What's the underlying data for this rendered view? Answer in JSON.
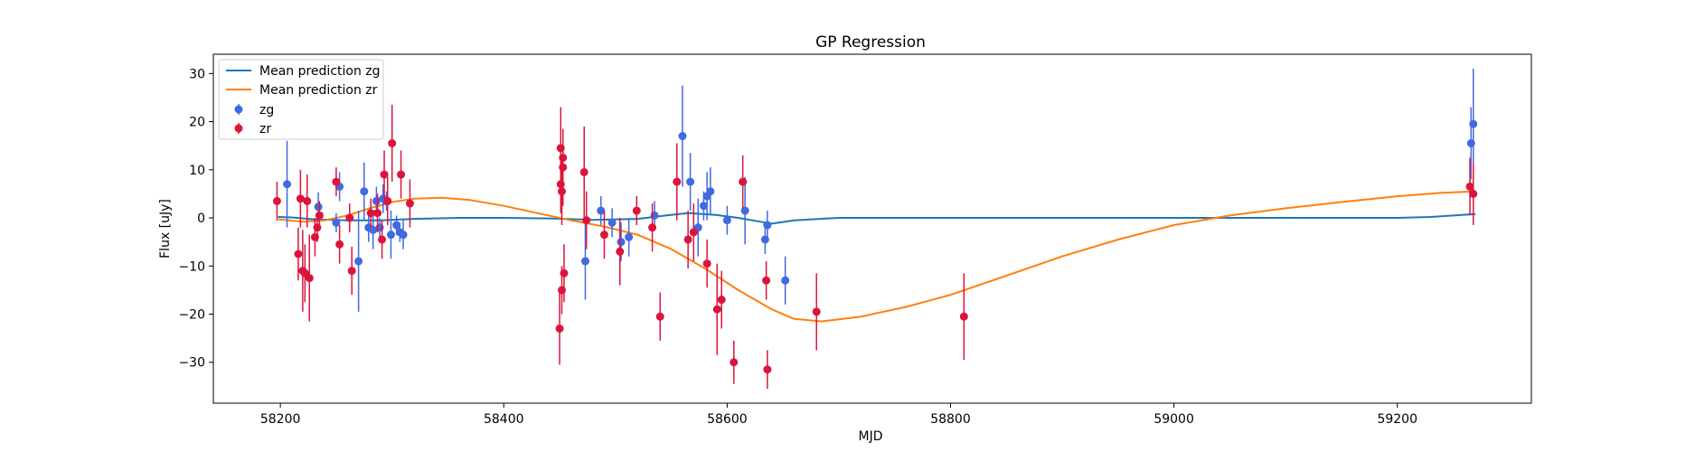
{
  "chart_data": {
    "type": "scatter",
    "title": "GP Regression",
    "xlabel": "MJD",
    "ylabel": "Flux [uJy]",
    "xlim": [
      58140,
      59320
    ],
    "ylim": [
      -38.5,
      34
    ],
    "xticks": [
      58200,
      58400,
      58600,
      58800,
      59000,
      59200
    ],
    "yticks": [
      -30,
      -20,
      -10,
      0,
      10,
      20,
      30
    ],
    "grid": false,
    "legend_placement": "upper-left",
    "colors": {
      "zg_line": "#1f77b4",
      "zr_line": "#ff7f0e",
      "zg_points": "#4169e1",
      "zr_points": "#dc143c"
    },
    "series": [
      {
        "name": "Mean prediction zg",
        "kind": "line",
        "x": [
          58198,
          58210,
          58230,
          58260,
          58290,
          58320,
          58360,
          58400,
          58440,
          58480,
          58520,
          58545,
          58565,
          58590,
          58610,
          58630,
          58640,
          58660,
          58700,
          58800,
          58900,
          59000,
          59100,
          59200,
          59230,
          59270
        ],
        "y": [
          0.2,
          0.1,
          -0.3,
          -0.5,
          -0.5,
          -0.2,
          0.0,
          0.0,
          -0.1,
          -0.4,
          -0.2,
          0.5,
          1.0,
          0.6,
          0.0,
          -0.8,
          -1.2,
          -0.5,
          0.0,
          0.0,
          0.0,
          0.0,
          0.0,
          0.0,
          0.2,
          0.8
        ]
      },
      {
        "name": "Mean prediction zr",
        "kind": "line",
        "x": [
          58198,
          58220,
          58240,
          58260,
          58280,
          58300,
          58320,
          58345,
          58370,
          58400,
          58430,
          58460,
          58490,
          58520,
          58550,
          58580,
          58610,
          58640,
          58660,
          58685,
          58720,
          58760,
          58800,
          58850,
          58900,
          58950,
          59000,
          59050,
          59100,
          59150,
          59200,
          59240,
          59270
        ],
        "y": [
          -0.3,
          -0.8,
          -0.5,
          0.5,
          2.0,
          3.3,
          4.0,
          4.2,
          3.7,
          2.5,
          1.0,
          -0.5,
          -1.8,
          -3.5,
          -6.5,
          -10.5,
          -15,
          -19,
          -21,
          -21.5,
          -20.5,
          -18.5,
          -16,
          -12,
          -8,
          -4.5,
          -1.5,
          0.5,
          2.0,
          3.3,
          4.5,
          5.2,
          5.5
        ]
      },
      {
        "name": "zg",
        "kind": "errorbar",
        "x": [
          58206,
          58234,
          58250,
          58253,
          58270,
          58275,
          58279,
          58283,
          58286,
          58289,
          58292,
          58295,
          58299,
          58304,
          58307,
          58310,
          58473,
          58487,
          58497,
          58505,
          58512,
          58535,
          58560,
          58567,
          58574,
          58579,
          58582,
          58585,
          58600,
          58616,
          58634,
          58636,
          58652,
          59266,
          59268
        ],
        "y": [
          7,
          2.3,
          -1,
          6.5,
          -9,
          5.5,
          -2,
          -2.5,
          3.5,
          -2,
          4,
          3.5,
          -3.5,
          -1.5,
          -3,
          -3.5,
          -9,
          1.5,
          -1,
          -5,
          -4,
          0.5,
          17,
          7.5,
          -2,
          2.5,
          4.5,
          5.5,
          -0.5,
          1.5,
          -4.5,
          -1.5,
          -13,
          15.5,
          19.5
        ],
        "err": [
          9,
          3,
          2,
          3,
          10.5,
          6,
          3,
          4,
          3,
          2,
          3,
          2,
          5,
          2,
          2,
          3,
          8,
          3,
          3,
          4,
          4,
          3,
          10.5,
          6,
          6,
          3,
          5,
          5,
          3,
          7,
          3,
          3,
          5,
          7.5,
          11.5
        ]
      },
      {
        "name": "zr",
        "kind": "errorbar",
        "x": [
          58197,
          58216,
          58218,
          58220,
          58222,
          58224,
          58226,
          58231,
          58233,
          58235,
          58250,
          58253,
          58262,
          58264,
          58281,
          58287,
          58291,
          58293,
          58296,
          58300,
          58308,
          58316,
          58450,
          58451,
          58451,
          58452,
          58452,
          58453,
          58453,
          58454,
          58472,
          58474,
          58490,
          58504,
          58519,
          58533,
          58540,
          58555,
          58565,
          58570,
          58582,
          58591,
          58595,
          58606,
          58614,
          58635,
          58636,
          58680,
          58812,
          59265,
          59268
        ],
        "y": [
          3.5,
          -7.5,
          4,
          -11,
          -11.5,
          3.5,
          -12.5,
          -4,
          -2,
          0.5,
          7.5,
          -5.5,
          0,
          -11,
          1,
          1,
          -4.5,
          9,
          3.5,
          15.5,
          9,
          3,
          -23,
          14.5,
          7,
          5.5,
          -15,
          12.5,
          10.5,
          -11.5,
          9.5,
          -0.5,
          -3.5,
          -7,
          1.5,
          -2,
          -20.5,
          7.5,
          -4.5,
          -3,
          -9.5,
          -19,
          -17,
          -30,
          7.5,
          -13,
          -31.5,
          -19.5,
          -20.5,
          6.5,
          5
        ],
        "err": [
          4,
          5.5,
          6,
          8.5,
          6,
          5.5,
          9,
          4,
          3,
          3,
          3,
          4,
          3,
          5,
          3,
          4,
          4,
          5,
          5,
          8,
          5,
          5,
          7.5,
          8.5,
          6,
          7,
          5,
          6,
          8,
          6,
          9.5,
          6,
          5,
          7,
          3,
          5,
          5,
          8,
          6,
          6,
          5,
          9.5,
          6,
          4.5,
          5.5,
          4,
          4,
          8,
          9,
          6,
          6.5
        ]
      }
    ]
  }
}
